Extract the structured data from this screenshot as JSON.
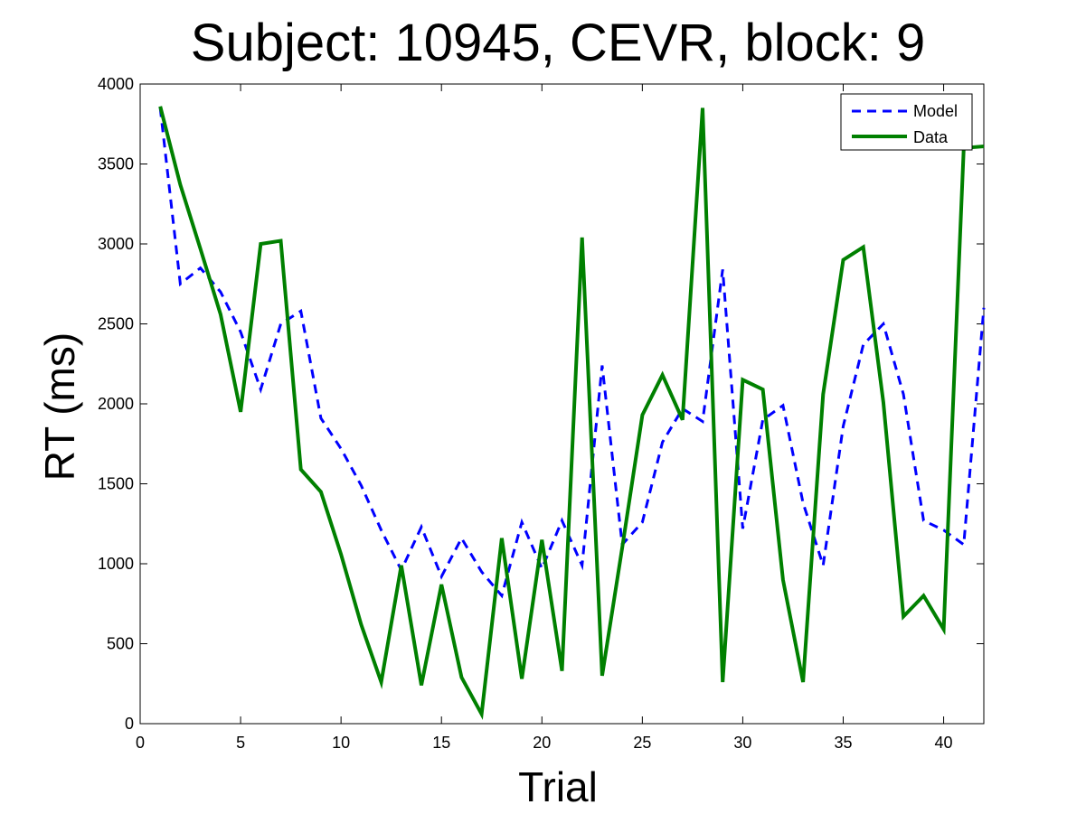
{
  "chart_data": {
    "type": "line",
    "title": "Subject: 10945, CEVR, block: 9",
    "xlabel": "Trial",
    "ylabel": "RT (ms)",
    "xlim": [
      0,
      42
    ],
    "ylim": [
      0,
      4000
    ],
    "xticks": [
      0,
      5,
      10,
      15,
      20,
      25,
      30,
      35,
      40
    ],
    "yticks": [
      0,
      500,
      1000,
      1500,
      2000,
      2500,
      3000,
      3500,
      4000
    ],
    "grid": false,
    "legend_position": "top-right",
    "x": [
      1,
      2,
      3,
      4,
      5,
      6,
      7,
      8,
      9,
      10,
      11,
      12,
      13,
      14,
      15,
      16,
      17,
      18,
      19,
      20,
      21,
      22,
      23,
      24,
      25,
      26,
      27,
      28,
      29,
      30,
      31,
      32,
      33,
      34,
      35,
      36,
      37,
      38,
      39,
      40,
      41,
      42
    ],
    "series": [
      {
        "name": "Model",
        "color": "#0000ff",
        "style": "dashed",
        "values": [
          3850,
          2750,
          2850,
          2700,
          2450,
          2090,
          2500,
          2580,
          1910,
          1720,
          1490,
          1210,
          960,
          1230,
          920,
          1160,
          950,
          800,
          1260,
          970,
          1270,
          990,
          2240,
          1120,
          1260,
          1760,
          1970,
          1890,
          2840,
          1220,
          1900,
          1990,
          1380,
          990,
          1860,
          2370,
          2500,
          2060,
          1270,
          1210,
          1120,
          2600
        ]
      },
      {
        "name": "Data",
        "color": "#008000",
        "style": "solid",
        "values": [
          3860,
          3370,
          2970,
          2560,
          1950,
          3000,
          3020,
          1590,
          1450,
          1060,
          620,
          260,
          990,
          240,
          870,
          290,
          60,
          1160,
          280,
          1150,
          330,
          3040,
          300,
          1100,
          1930,
          2180,
          1900,
          3850,
          260,
          2150,
          2090,
          900,
          260,
          2060,
          2900,
          2980,
          2010,
          670,
          800,
          590,
          3600,
          3610
        ]
      }
    ]
  }
}
